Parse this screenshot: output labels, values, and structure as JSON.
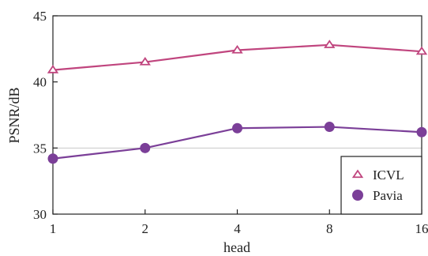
{
  "chart_data": {
    "type": "line",
    "x": [
      "1",
      "2",
      "4",
      "8",
      "16"
    ],
    "xlabel": "head",
    "ylabel": "PSNR/dB",
    "ylim": [
      30,
      45
    ],
    "yticks": [
      "30",
      "35",
      "40",
      "45"
    ],
    "grid": "horizontal line at 35",
    "legend_position": "bottom-right",
    "series": [
      {
        "name": "ICVL",
        "marker": "triangle-open",
        "color": "#c0457e",
        "values": [
          40.9,
          41.5,
          42.4,
          42.8,
          42.3
        ]
      },
      {
        "name": "Pavia",
        "marker": "circle-filled",
        "color": "#7b3f98",
        "values": [
          34.2,
          35.0,
          36.5,
          36.6,
          36.2
        ]
      }
    ]
  }
}
